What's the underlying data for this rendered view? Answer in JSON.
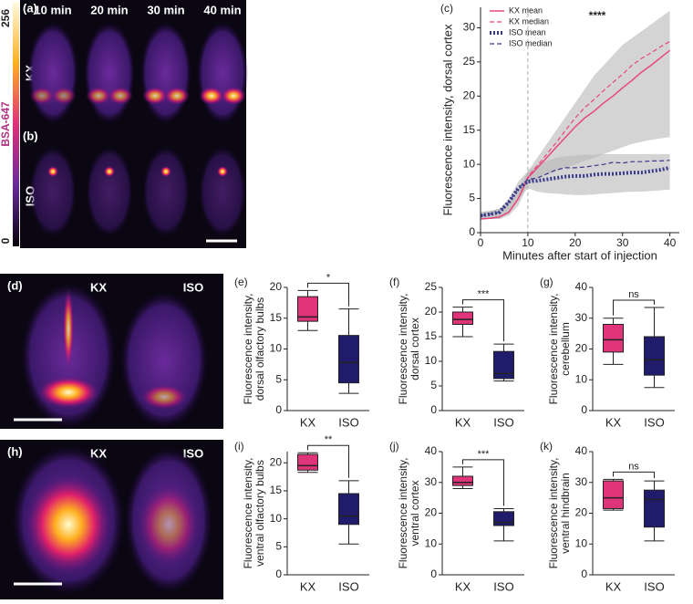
{
  "images": {
    "colorbar": {
      "label": "BSA-647",
      "max": 256,
      "min": 0
    },
    "a": {
      "panel": "(a)",
      "times": [
        "10 min",
        "20 min",
        "30 min",
        "40 min"
      ],
      "row_label": "KX"
    },
    "b": {
      "panel": "(b)",
      "row_label": "ISO"
    },
    "d": {
      "panel": "(d)",
      "labels": [
        "KX",
        "ISO"
      ]
    },
    "h": {
      "panel": "(h)",
      "labels": [
        "KX",
        "ISO"
      ]
    }
  },
  "chart_data": [
    {
      "type": "line",
      "panel": "(c)",
      "ylabel": "Fluorescence intensity, dorsal cortex",
      "xlabel": "Minutes after start of injection",
      "annotation": "****",
      "x": [
        0,
        2,
        4,
        6,
        8,
        10,
        12,
        14,
        16,
        18,
        20,
        22,
        24,
        26,
        28,
        30,
        32,
        34,
        36,
        38,
        40
      ],
      "xlim": [
        0,
        42
      ],
      "xticks": [
        0,
        10,
        20,
        30,
        40
      ],
      "ylim": [
        0,
        33
      ],
      "yticks": [
        0,
        5,
        10,
        15,
        20,
        25,
        30
      ],
      "vline": 10,
      "series": [
        {
          "name": "KX mean",
          "color": "#e8467c",
          "style": "solid",
          "values": [
            2,
            2.1,
            2.3,
            3,
            5,
            8,
            9.5,
            11,
            12.5,
            14,
            15.5,
            16.8,
            17.8,
            19,
            20,
            21.2,
            22.3,
            23.5,
            24.5,
            25.6,
            26.7
          ]
        },
        {
          "name": "KX median",
          "color": "#e8467c",
          "style": "dashed",
          "values": [
            2,
            2.1,
            2.3,
            3,
            5,
            8.2,
            9.8,
            11.5,
            13.2,
            15,
            16.8,
            18.3,
            19.5,
            20.8,
            22,
            23.2,
            24.5,
            25.5,
            26.3,
            27.2,
            28
          ]
        },
        {
          "name": "ISO mean",
          "color": "#3a3a8c",
          "style": "dotted",
          "values": [
            2.5,
            2.7,
            3,
            4.5,
            6.5,
            7.5,
            7.6,
            7.8,
            8,
            8.2,
            8.3,
            8.3,
            8.5,
            8.6,
            8.6,
            8.7,
            8.8,
            8.8,
            9,
            9.2,
            9.5
          ]
        },
        {
          "name": "ISO median",
          "color": "#3a3a8c",
          "style": "dashed",
          "values": [
            2.5,
            2.7,
            3,
            4.5,
            6.5,
            7.8,
            8,
            8.6,
            9.2,
            9.5,
            9.5,
            9.6,
            9.8,
            10,
            10.3,
            10.2,
            10.4,
            10.4,
            10.5,
            10.5,
            10.6
          ]
        }
      ],
      "bands": [
        {
          "color": "#b8b8b8",
          "lower": [
            2,
            2,
            2,
            2.5,
            4,
            7,
            8,
            8.5,
            9,
            9.5,
            10,
            10.5,
            11,
            11.5,
            12,
            12.5,
            13,
            13.3,
            13.6,
            13.8,
            14
          ],
          "upper": [
            3,
            3.2,
            3.5,
            4.5,
            6.5,
            9,
            11,
            13,
            15,
            17,
            19,
            21,
            23,
            24.5,
            26,
            27.5,
            28.5,
            29.5,
            30.5,
            31.5,
            32.5
          ]
        },
        {
          "color": "#b8b8b8",
          "lower": [
            2,
            2,
            2,
            3,
            5,
            6.5,
            6,
            5.8,
            5.7,
            5.6,
            5.5,
            5.5,
            5.6,
            5.7,
            5.8,
            5.9,
            6,
            6,
            6.1,
            6.2,
            6.3
          ],
          "upper": [
            3,
            3.2,
            3.5,
            5,
            7.5,
            9,
            10,
            10.5,
            11,
            11.2,
            11.3,
            11.4,
            11.4,
            11.5,
            11.5,
            11.5,
            11.5,
            11.5,
            11.5,
            11.5,
            11.5
          ]
        }
      ]
    },
    {
      "type": "box",
      "panel": "(e)",
      "ylabel": [
        "Fluorescence intensity,",
        "dorsal olfactory bulbs"
      ],
      "categories": [
        "KX",
        "ISO"
      ],
      "annotation": "*",
      "ylim": [
        0,
        20
      ],
      "yticks": [
        0,
        5,
        10,
        15,
        20
      ],
      "boxes": [
        {
          "color": "#e0347a",
          "min": 13,
          "q1": 14.5,
          "median": 15.2,
          "q3": 18.5,
          "max": 19.5
        },
        {
          "color": "#1f1c6b",
          "min": 2.8,
          "q1": 4.5,
          "median": 7.8,
          "q3": 12.2,
          "max": 16.5
        }
      ]
    },
    {
      "type": "box",
      "panel": "(f)",
      "ylabel": [
        "Fluorescence intensity,",
        "dorsal cortex"
      ],
      "categories": [
        "KX",
        "ISO"
      ],
      "annotation": "***",
      "ylim": [
        0,
        25
      ],
      "yticks": [
        0,
        5,
        10,
        15,
        20,
        25
      ],
      "boxes": [
        {
          "color": "#e0347a",
          "min": 15,
          "q1": 17.5,
          "median": 18.5,
          "q3": 20,
          "max": 21
        },
        {
          "color": "#1f1c6b",
          "min": 6,
          "q1": 6.5,
          "median": 7.5,
          "q3": 12,
          "max": 13.5
        }
      ]
    },
    {
      "type": "box",
      "panel": "(g)",
      "ylabel": [
        "Fluorescence intensity,",
        "cerebellum"
      ],
      "categories": [
        "KX",
        "ISO"
      ],
      "annotation": "ns",
      "ylim": [
        0,
        40
      ],
      "yticks": [
        0,
        10,
        20,
        30,
        40
      ],
      "boxes": [
        {
          "color": "#e0347a",
          "min": 15,
          "q1": 19,
          "median": 23,
          "q3": 28,
          "max": 30
        },
        {
          "color": "#1f1c6b",
          "min": 7.5,
          "q1": 11.5,
          "median": 16.5,
          "q3": 24,
          "max": 33.5
        }
      ]
    },
    {
      "type": "box",
      "panel": "(i)",
      "ylabel": [
        "Fluorescence intensity,",
        "ventral olfactory bulbs"
      ],
      "categories": [
        "KX",
        "ISO"
      ],
      "annotation": "**",
      "ylim": [
        0,
        22
      ],
      "yticks": [
        0,
        5,
        10,
        15,
        20
      ],
      "boxes": [
        {
          "color": "#e0347a",
          "min": 18.3,
          "q1": 18.7,
          "median": 19.5,
          "q3": 21.5,
          "max": 21.8
        },
        {
          "color": "#1f1c6b",
          "min": 5.5,
          "q1": 9,
          "median": 10.5,
          "q3": 14.5,
          "max": 16.8
        }
      ]
    },
    {
      "type": "box",
      "panel": "(j)",
      "ylabel": [
        "Fluorescence intensity,",
        "ventral cortex"
      ],
      "categories": [
        "KX",
        "ISO"
      ],
      "annotation": "***",
      "ylim": [
        0,
        40
      ],
      "yticks": [
        0,
        10,
        20,
        30,
        40
      ],
      "boxes": [
        {
          "color": "#e0347a",
          "min": 28,
          "q1": 29,
          "median": 30,
          "q3": 32,
          "max": 35
        },
        {
          "color": "#1f1c6b",
          "min": 11,
          "q1": 16,
          "median": 17,
          "q3": 20.5,
          "max": 21.5
        }
      ]
    },
    {
      "type": "box",
      "panel": "(k)",
      "ylabel": [
        "Fluorescence intensity,",
        "ventral hindbrain"
      ],
      "categories": [
        "KX",
        "ISO"
      ],
      "annotation": "ns",
      "ylim": [
        0,
        40
      ],
      "yticks": [
        0,
        10,
        20,
        30,
        40
      ],
      "boxes": [
        {
          "color": "#e0347a",
          "min": 21,
          "q1": 21.5,
          "median": 25,
          "q3": 30.5,
          "max": 31
        },
        {
          "color": "#1f1c6b",
          "min": 11,
          "q1": 15.5,
          "median": 24.5,
          "q3": 27.5,
          "max": 30.5
        }
      ]
    }
  ]
}
